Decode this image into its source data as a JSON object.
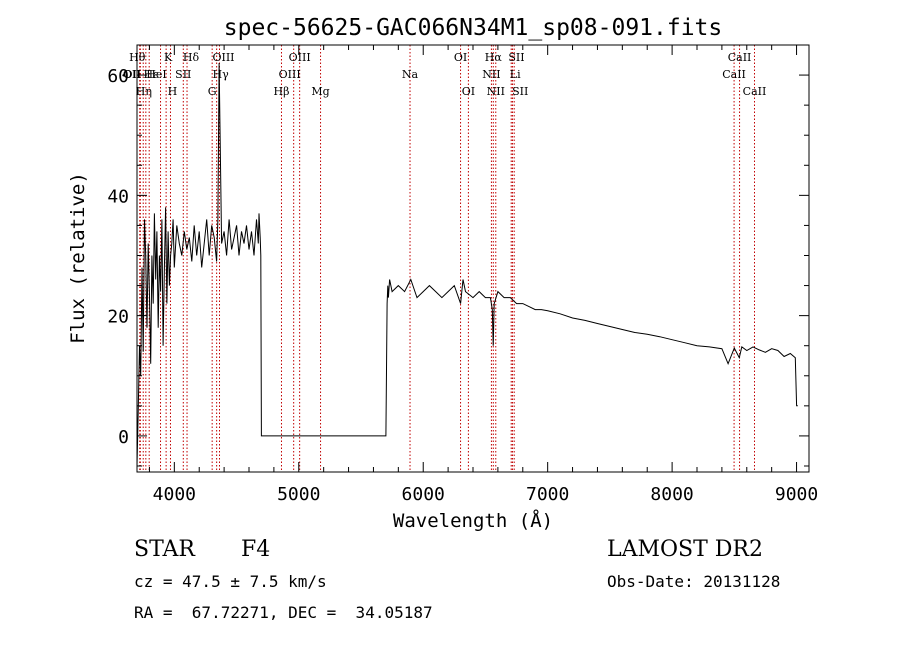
{
  "chart_data": {
    "type": "line",
    "title": "spec-56625-GAC066N34M1_sp08-091.fits",
    "xlabel": "Wavelength (Å)",
    "ylabel": "Flux (relative)",
    "xlim": [
      3700,
      9100
    ],
    "ylim": [
      -6,
      65
    ],
    "xticks": [
      4000,
      5000,
      6000,
      7000,
      8000,
      9000
    ],
    "yticks": [
      0,
      20,
      40,
      60
    ],
    "grid": false,
    "series": [
      {
        "x": [
          3700,
          3710,
          3720,
          3730,
          3740,
          3750,
          3760,
          3770,
          3780,
          3790,
          3800,
          3810,
          3820,
          3830,
          3840,
          3850,
          3860,
          3870,
          3880,
          3890,
          3900,
          3910,
          3920,
          3930,
          3940,
          3950,
          3960,
          3970,
          3980,
          3990,
          4000,
          4020,
          4040,
          4060,
          4080,
          4100,
          4120,
          4140,
          4160,
          4180,
          4200,
          4220,
          4240,
          4260,
          4280,
          4300,
          4320,
          4340,
          4350,
          4360,
          4380,
          4400,
          4420,
          4440,
          4460,
          4480,
          4500,
          4520,
          4540,
          4560,
          4580,
          4600,
          4620,
          4640,
          4660,
          4675,
          4680,
          4690,
          4695,
          4700,
          4800,
          4900,
          5000,
          5100,
          5200,
          5300,
          5400,
          5500,
          5600,
          5700,
          5710,
          5715,
          5720,
          5730,
          5750,
          5800,
          5850,
          5900,
          5950,
          6000,
          6050,
          6100,
          6150,
          6200,
          6250,
          6300,
          6320,
          6340,
          6400,
          6450,
          6500,
          6540,
          6555,
          6562,
          6570,
          6600,
          6650,
          6700,
          6750,
          6800,
          6850,
          6900,
          6950,
          7000,
          7100,
          7200,
          7300,
          7400,
          7500,
          7600,
          7700,
          7800,
          7900,
          8000,
          8100,
          8200,
          8300,
          8400,
          8450,
          8500,
          8540,
          8560,
          8600,
          8650,
          8700,
          8750,
          8800,
          8850,
          8900,
          8950,
          8990,
          9000,
          9010
        ],
        "y": [
          -5,
          4,
          15,
          10,
          28,
          14,
          36,
          30,
          18,
          32,
          24,
          12,
          30,
          22,
          37,
          26,
          34,
          18,
          30,
          24,
          36,
          15,
          28,
          38,
          22,
          34,
          25,
          30,
          32,
          36,
          28,
          35,
          32,
          30,
          34,
          31,
          33,
          29,
          35,
          30,
          34,
          28,
          32,
          36,
          30,
          35,
          33,
          29,
          36,
          62,
          32,
          34,
          30,
          36,
          31,
          33,
          35,
          30,
          34,
          32,
          35,
          31,
          34,
          30,
          36,
          32,
          37,
          33,
          30,
          0,
          0,
          0,
          0,
          0,
          0,
          0,
          0,
          0,
          0,
          0,
          22,
          25,
          23,
          26,
          24,
          25,
          24,
          26,
          23,
          24,
          25,
          24,
          23,
          24,
          25,
          22,
          26,
          24,
          23,
          24,
          23,
          23,
          21,
          15,
          22,
          24,
          23,
          23,
          22,
          22,
          21.5,
          21,
          21,
          20.8,
          20.3,
          19.6,
          19.2,
          18.7,
          18.2,
          17.7,
          17.2,
          16.9,
          16.5,
          16.0,
          15.5,
          15.0,
          14.8,
          14.5,
          12,
          14.6,
          13,
          14.8,
          14.2,
          14.8,
          14.3,
          13.9,
          14.5,
          14.2,
          13.2,
          13.7,
          13,
          5,
          5
        ]
      }
    ],
    "lines": [
      {
        "wl": 3722,
        "label": "OII",
        "row": 2,
        "dx": -8
      },
      {
        "wl": 3727,
        "label": "OII",
        "row": 2,
        "dx": -8
      },
      {
        "wl": 3750,
        "label": "Hθ",
        "row": 1,
        "dx": -6
      },
      {
        "wl": 3771,
        "label": "Hη",
        "row": 3,
        "dx": -2
      },
      {
        "wl": 3798,
        "label": "Hε",
        "row": 2,
        "dx": 2
      },
      {
        "wl": 3889,
        "label": "HeI",
        "row": 2,
        "dx": -4
      },
      {
        "wl": 3934,
        "label": "K",
        "row": 1,
        "dx": 2
      },
      {
        "wl": 3969,
        "label": "H",
        "row": 3,
        "dx": 2
      },
      {
        "wl": 4072,
        "label": "SII",
        "row": 2,
        "dx": 0
      },
      {
        "wl": 4102,
        "label": "Hδ",
        "row": 1,
        "dx": 4
      },
      {
        "wl": 4304,
        "label": "G",
        "row": 3,
        "dx": 0
      },
      {
        "wl": 4340,
        "label": "Hγ",
        "row": 2,
        "dx": 4
      },
      {
        "wl": 4363,
        "label": "OIII",
        "row": 1,
        "dx": 4
      },
      {
        "wl": 4861,
        "label": "Hβ",
        "row": 3,
        "dx": 0
      },
      {
        "wl": 4959,
        "label": "OIII",
        "row": 2,
        "dx": -4
      },
      {
        "wl": 5007,
        "label": "OIII",
        "row": 1,
        "dx": 0
      },
      {
        "wl": 5175,
        "label": "Mg",
        "row": 3,
        "dx": 0
      },
      {
        "wl": 5894,
        "label": "Na",
        "row": 2,
        "dx": 0
      },
      {
        "wl": 6300,
        "label": "OI",
        "row": 1,
        "dx": 0
      },
      {
        "wl": 6363,
        "label": "OI",
        "row": 3,
        "dx": 0
      },
      {
        "wl": 6548,
        "label": "NII",
        "row": 2,
        "dx": 0
      },
      {
        "wl": 6563,
        "label": "Hα",
        "row": 1,
        "dx": 0
      },
      {
        "wl": 6583,
        "label": "NII",
        "row": 3,
        "dx": 0
      },
      {
        "wl": 6707,
        "label": "Li",
        "row": 2,
        "dx": 4
      },
      {
        "wl": 6717,
        "label": "SII",
        "row": 1,
        "dx": 4
      },
      {
        "wl": 6731,
        "label": "SII",
        "row": 3,
        "dx": 6
      },
      {
        "wl": 8498,
        "label": "CaII",
        "row": 2,
        "dx": 0
      },
      {
        "wl": 8542,
        "label": "CaII",
        "row": 1,
        "dx": 0
      },
      {
        "wl": 8662,
        "label": "CaII",
        "row": 3,
        "dx": 0
      }
    ]
  },
  "info": {
    "class": "STAR",
    "subclass": "F4",
    "cz": "cz = 47.5 ± 7.5 km/s",
    "coords": "RA =  67.72271, DEC =  34.05187",
    "survey": "LAMOST DR2",
    "obs_date": "Obs-Date: 20131128"
  }
}
